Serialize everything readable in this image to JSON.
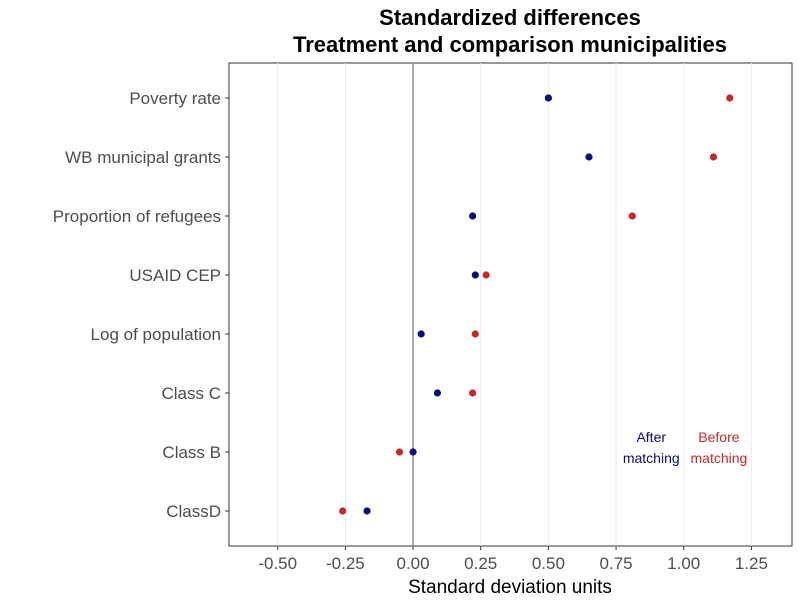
{
  "chart_data": {
    "type": "scatter",
    "title_line1": "Standardized differences",
    "title_line2": "Treatment and comparison municipalities",
    "xlabel": "Standard deviation units",
    "ylabel": "",
    "xlim": [
      -0.68,
      1.4
    ],
    "xticks": [
      -0.5,
      -0.25,
      0,
      0.25,
      0.5,
      0.75,
      1.0,
      1.25
    ],
    "xtick_labels": [
      "-0.50",
      "-0.25",
      "0.00",
      "0.25",
      "0.50",
      "0.75",
      "1.00",
      "1.25"
    ],
    "reference_line_x": 0,
    "grid": "vertical major gridlines",
    "categories": [
      "Poverty rate",
      "WB municipal grants",
      "Proportion of refugees",
      "USAID CEP",
      "Log of population",
      "Class C",
      "Class B",
      "ClassD"
    ],
    "series": [
      {
        "key": "before",
        "color": "#c8282d",
        "values": [
          1.17,
          1.11,
          0.81,
          0.27,
          0.23,
          0.22,
          -0.05,
          -0.26
        ]
      },
      {
        "key": "after",
        "color": "#0a0a80",
        "values": [
          0.5,
          0.65,
          0.22,
          0.23,
          0.03,
          0.09,
          0.0,
          -0.17
        ]
      }
    ],
    "annotations": [
      {
        "line1": "After",
        "line2": "matching",
        "color": "#0a0a80",
        "x": 0.88,
        "category": "Class B"
      },
      {
        "line1": "Before",
        "line2": "matching",
        "color": "#c8282d",
        "x": 1.13,
        "category": "Class B"
      }
    ]
  }
}
